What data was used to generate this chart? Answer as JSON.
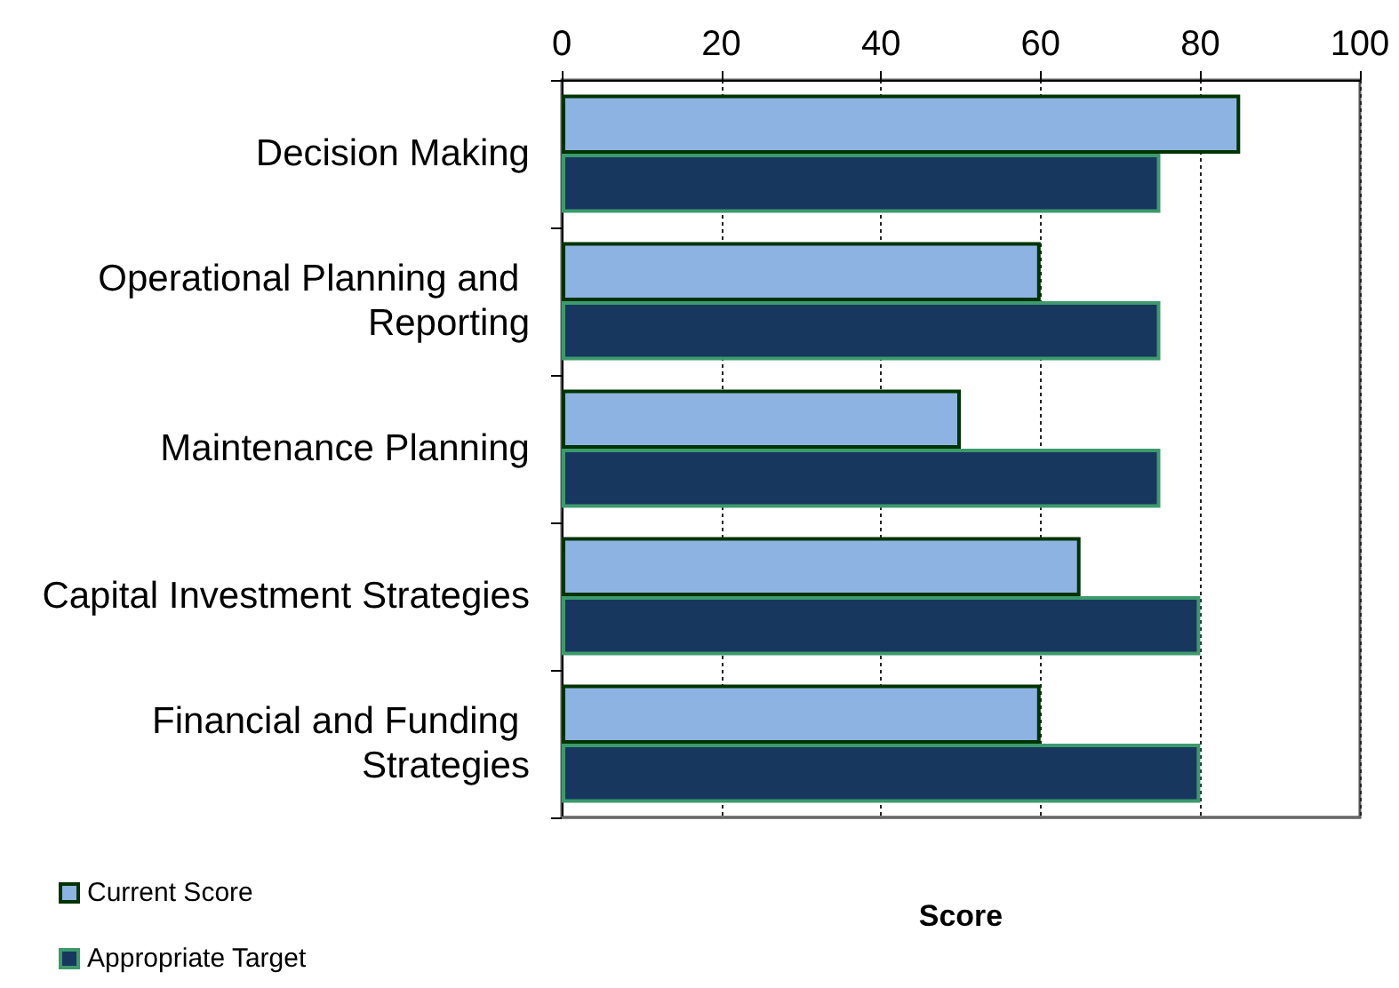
{
  "chart_data": {
    "type": "bar",
    "orientation": "horizontal",
    "xlabel": "Score",
    "categories": [
      "Decision Making",
      "Operational Planning and Reporting",
      "Maintenance Planning",
      "Capital Investment Strategies",
      "Financial and Funding Strategies"
    ],
    "series": [
      {
        "name": "Current Score",
        "color": "#8db3e2",
        "values": [
          85,
          60,
          50,
          65,
          60
        ]
      },
      {
        "name": "Appropriate Target",
        "color": "#17375e",
        "values": [
          75,
          75,
          75,
          80,
          80
        ]
      }
    ],
    "xlim": [
      0,
      100
    ],
    "xticks": [
      0,
      20,
      40,
      60,
      80,
      100
    ],
    "grid": "x",
    "legend": "bottom left"
  }
}
